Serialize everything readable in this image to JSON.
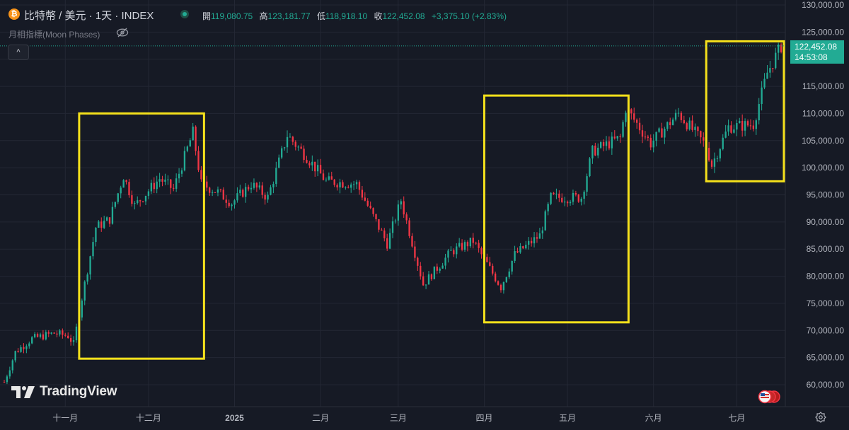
{
  "header": {
    "symbol": "比特幣 / 美元 · 1天 · INDEX",
    "ohlc": [
      {
        "key": "開",
        "value": "119,080.75"
      },
      {
        "key": "高",
        "value": "123,181.77"
      },
      {
        "key": "低",
        "value": "118,918.10"
      },
      {
        "key": "收",
        "value": "122,452.08"
      }
    ],
    "change": "+3,375.10 (+2.83%)",
    "indicator": "月相指標(Moon Phases)",
    "collapse_label": "^"
  },
  "last_price": {
    "price": "122,452.08",
    "countdown": "14:53:08"
  },
  "logo_text": "TradingView",
  "colors": {
    "background": "#161a25",
    "up": "#22ab94",
    "down": "#f23645",
    "highlight": "#f5e11b",
    "grid": "#232734",
    "axis_text": "#b2b5be"
  },
  "chart_data": {
    "type": "candlestick",
    "title": "比特幣 / 美元 · 1天 · INDEX",
    "ylim": [
      57000,
      130000
    ],
    "y_ticks": [
      60000,
      65000,
      70000,
      75000,
      80000,
      85000,
      90000,
      95000,
      100000,
      105000,
      110000,
      115000,
      120000,
      125000,
      130000
    ],
    "y_tick_labels": [
      "60,000.00",
      "65,000.00",
      "70,000.00",
      "75,000.00",
      "80,000.00",
      "85,000.00",
      "90,000.00",
      "95,000.00",
      "100,000.00",
      "105,000.00",
      "110,000.00",
      "115,000.00",
      "120,000.00",
      "125,000.00",
      "130,000.00"
    ],
    "x_start": "2024-10-10",
    "x_end": "2025-07-18",
    "x_ticks": [
      {
        "date": "2024-11-01",
        "label": "十一月"
      },
      {
        "date": "2024-12-01",
        "label": "十二月"
      },
      {
        "date": "2025-01-01",
        "label": "2025"
      },
      {
        "date": "2025-02-01",
        "label": "二月"
      },
      {
        "date": "2025-03-01",
        "label": "三月"
      },
      {
        "date": "2025-04-01",
        "label": "四月"
      },
      {
        "date": "2025-05-01",
        "label": "五月"
      },
      {
        "date": "2025-06-01",
        "label": "六月"
      },
      {
        "date": "2025-07-01",
        "label": "七月"
      }
    ],
    "last_close": 122452.08,
    "price_path": [
      {
        "date": "2024-10-10",
        "close": 60500
      },
      {
        "date": "2024-10-14",
        "close": 66000
      },
      {
        "date": "2024-10-20",
        "close": 68500
      },
      {
        "date": "2024-10-28",
        "close": 69500
      },
      {
        "date": "2024-11-02",
        "close": 69000
      },
      {
        "date": "2024-11-04",
        "close": 67500
      },
      {
        "date": "2024-11-07",
        "close": 76000
      },
      {
        "date": "2024-11-12",
        "close": 89000
      },
      {
        "date": "2024-11-17",
        "close": 90500
      },
      {
        "date": "2024-11-22",
        "close": 98500
      },
      {
        "date": "2024-11-26",
        "close": 93000
      },
      {
        "date": "2024-12-05",
        "close": 98000
      },
      {
        "date": "2024-12-10",
        "close": 96000
      },
      {
        "date": "2024-12-17",
        "close": 106500
      },
      {
        "date": "2024-12-20",
        "close": 97000
      },
      {
        "date": "2024-12-26",
        "close": 95500
      },
      {
        "date": "2024-12-31",
        "close": 93500
      },
      {
        "date": "2025-01-07",
        "close": 97000
      },
      {
        "date": "2025-01-13",
        "close": 94500
      },
      {
        "date": "2025-01-20",
        "close": 106000
      },
      {
        "date": "2025-01-27",
        "close": 102000
      },
      {
        "date": "2025-02-03",
        "close": 97500
      },
      {
        "date": "2025-02-14",
        "close": 97000
      },
      {
        "date": "2025-02-25",
        "close": 86000
      },
      {
        "date": "2025-03-02",
        "close": 94000
      },
      {
        "date": "2025-03-10",
        "close": 78500
      },
      {
        "date": "2025-03-20",
        "close": 84500
      },
      {
        "date": "2025-03-28",
        "close": 86500
      },
      {
        "date": "2025-04-07",
        "close": 78000
      },
      {
        "date": "2025-04-12",
        "close": 84000
      },
      {
        "date": "2025-04-21",
        "close": 87500
      },
      {
        "date": "2025-04-25",
        "close": 94500
      },
      {
        "date": "2025-05-06",
        "close": 94500
      },
      {
        "date": "2025-05-10",
        "close": 103000
      },
      {
        "date": "2025-05-20",
        "close": 105500
      },
      {
        "date": "2025-05-22",
        "close": 111000
      },
      {
        "date": "2025-05-31",
        "close": 104500
      },
      {
        "date": "2025-06-10",
        "close": 110000
      },
      {
        "date": "2025-06-20",
        "close": 104000
      },
      {
        "date": "2025-06-22",
        "close": 100500
      },
      {
        "date": "2025-06-28",
        "close": 107500
      },
      {
        "date": "2025-07-07",
        "close": 108000
      },
      {
        "date": "2025-07-12",
        "close": 117500
      },
      {
        "date": "2025-07-17",
        "close": 122452
      }
    ],
    "highlight_boxes": [
      {
        "from": "2024-11-06",
        "to": "2024-12-21",
        "low": 64800,
        "high": 110000
      },
      {
        "from": "2025-04-01",
        "to": "2025-05-23",
        "low": 71500,
        "high": 113300
      },
      {
        "from": "2025-06-20",
        "to": "2025-07-18",
        "low": 97500,
        "high": 123300
      }
    ]
  }
}
